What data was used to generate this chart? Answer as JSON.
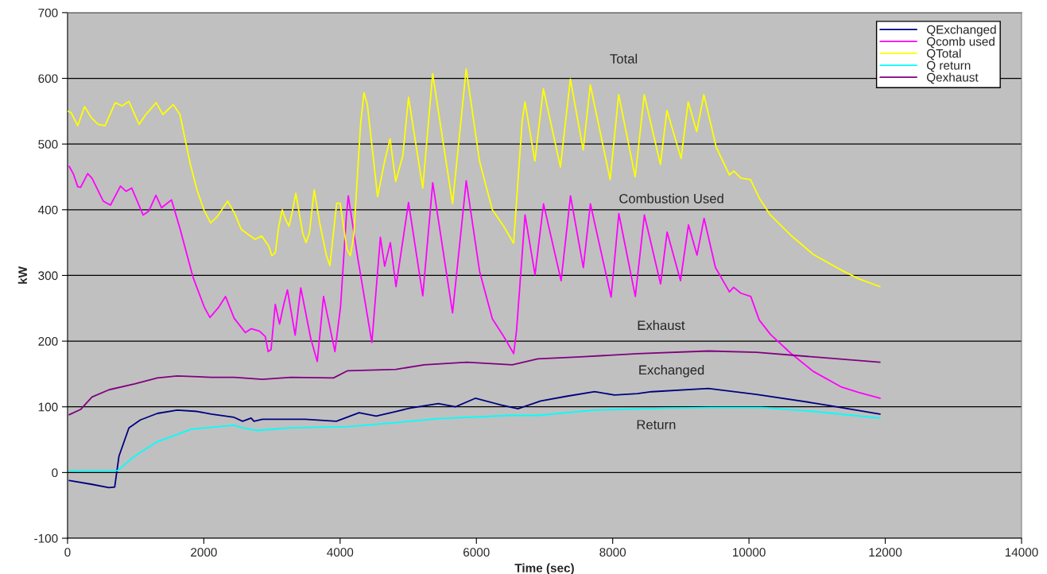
{
  "chart_data": {
    "type": "line",
    "xlabel": "Time (sec)",
    "ylabel": "kW",
    "xlim": [
      0,
      14000
    ],
    "ylim": [
      -100,
      700
    ],
    "xticks": [
      0,
      2000,
      4000,
      6000,
      8000,
      10000,
      12000,
      14000
    ],
    "yticks": [
      -100,
      0,
      100,
      200,
      300,
      400,
      500,
      600,
      700
    ],
    "grid": "y",
    "legend": "top right",
    "line_style": "solid",
    "marker": "none",
    "series": [
      {
        "name": "QExchanged",
        "color": "#000080",
        "x": [
          25,
          359,
          609,
          692,
          755,
          901,
          1068,
          1318,
          1610,
          1902,
          2110,
          2444,
          2569,
          2694,
          2736,
          2861,
          3486,
          3945,
          4279,
          4529,
          4820,
          5025,
          5442,
          5692,
          5984,
          6359,
          6610,
          6943,
          7319,
          7736,
          8027,
          8361,
          8570,
          9404,
          10109,
          10943,
          11923
        ],
        "values": [
          -12,
          -18,
          -23,
          -22,
          25,
          68,
          80,
          90,
          95,
          93,
          89,
          84,
          78,
          83,
          78,
          81,
          81,
          78,
          91,
          86,
          93,
          98,
          105,
          100,
          113,
          103,
          97,
          109,
          116,
          123,
          118,
          120,
          123,
          128,
          119,
          106,
          89
        ]
      },
      {
        "name": "Qcomb used",
        "color": "#ff00ff",
        "x": [
          25,
          88,
          150,
          192,
          296,
          359,
          525,
          630,
          776,
          859,
          942,
          1109,
          1193,
          1297,
          1380,
          1526,
          1651,
          1839,
          2006,
          2089,
          2214,
          2318,
          2444,
          2610,
          2694,
          2819,
          2902,
          2944,
          2986,
          3048,
          3111,
          3173,
          3227,
          3340,
          3423,
          3569,
          3665,
          3757,
          3924,
          4007,
          4091,
          4120,
          4258,
          4466,
          4591,
          4654,
          4737,
          4820,
          5004,
          5213,
          5359,
          5650,
          5851,
          6047,
          6234,
          6401,
          6547,
          6589,
          6714,
          6860,
          6985,
          7243,
          7381,
          7569,
          7673,
          7977,
          8090,
          8332,
          8465,
          8703,
          8799,
          8995,
          9112,
          9237,
          9341,
          9508,
          9713,
          9775,
          9880,
          10026,
          10151,
          10318,
          10609,
          10943,
          11360,
          11610,
          11923
        ],
        "values": [
          466,
          454,
          435,
          434,
          455,
          448,
          413,
          407,
          436,
          428,
          433,
          392,
          398,
          422,
          403,
          415,
          371,
          298,
          252,
          236,
          251,
          268,
          235,
          213,
          219,
          215,
          207,
          184,
          187,
          256,
          226,
          256,
          278,
          209,
          281,
          204,
          169,
          268,
          184,
          253,
          389,
          421,
          327,
          198,
          358,
          314,
          350,
          283,
          411,
          269,
          441,
          243,
          444,
          306,
          234,
          207,
          181,
          216,
          392,
          301,
          409,
          292,
          421,
          312,
          409,
          267,
          394,
          268,
          392,
          287,
          366,
          292,
          377,
          331,
          387,
          312,
          275,
          282,
          273,
          268,
          232,
          210,
          182,
          154,
          130,
          122,
          113
        ]
      },
      {
        "name": "QTotal",
        "color": "#ffff00",
        "x": [
          0,
          50,
          150,
          250,
          350,
          450,
          550,
          700,
          800,
          900,
          1050,
          1150,
          1300,
          1400,
          1550,
          1650,
          1800,
          1900,
          2000,
          2100,
          2200,
          2350,
          2450,
          2550,
          2750,
          2850,
          2950,
          3000,
          3050,
          3100,
          3150,
          3200,
          3250,
          3300,
          3350,
          3450,
          3500,
          3550,
          3620,
          3700,
          3800,
          3850,
          3950,
          4000,
          4100,
          4150,
          4200,
          4300,
          4350,
          4400,
          4550,
          4650,
          4733,
          4816,
          4920,
          5004,
          5213,
          5358,
          5650,
          5850,
          6046,
          6233,
          6400,
          6546,
          6671,
          6713,
          6858,
          6983,
          7233,
          7379,
          7567,
          7671,
          7963,
          8088,
          8330,
          8463,
          8700,
          8796,
          9004,
          9108,
          9233,
          9338,
          9520,
          9713,
          9777,
          9883,
          10022,
          10150,
          10313,
          10605,
          10943,
          11358,
          11608,
          11921
        ],
        "values": [
          550,
          548,
          528,
          557,
          540,
          530,
          528,
          563,
          558,
          565,
          530,
          545,
          563,
          545,
          560,
          545,
          470,
          430,
          400,
          380,
          390,
          413,
          395,
          370,
          355,
          360,
          345,
          330,
          335,
          375,
          400,
          385,
          375,
          398,
          425,
          365,
          350,
          365,
          430,
          380,
          330,
          315,
          410,
          410,
          340,
          330,
          360,
          530,
          578,
          560,
          420,
          472,
          508,
          443,
          482,
          571,
          433,
          607,
          409,
          614,
          474,
          400,
          375,
          349,
          534,
          564,
          474,
          584,
          465,
          599,
          491,
          590,
          446,
          575,
          450,
          575,
          469,
          551,
          478,
          564,
          519,
          575,
          495,
          453,
          459,
          448,
          446,
          418,
          392,
          362,
          332,
          308,
          295,
          283
        ]
      },
      {
        "name": "Q return",
        "color": "#00ffff",
        "x": [
          25,
          734,
          984,
          1318,
          1818,
          2444,
          2569,
          2778,
          3278,
          4111,
          4820,
          5442,
          6485,
          6901,
          7736,
          8778,
          9404,
          10192,
          10943,
          11923
        ],
        "values": [
          3,
          3,
          25,
          47,
          66,
          72,
          68,
          64,
          68,
          70,
          76,
          82,
          87,
          87,
          95,
          98,
          99,
          99,
          93,
          83
        ]
      },
      {
        "name": "Qexhaust",
        "color": "#800080",
        "x": [
          25,
          192,
          359,
          609,
          984,
          1318,
          1610,
          2110,
          2444,
          2861,
          3278,
          3903,
          4111,
          4820,
          5234,
          5859,
          6526,
          6901,
          7527,
          8361,
          9404,
          10109,
          10943,
          11923
        ],
        "values": [
          88,
          96,
          115,
          126,
          135,
          144,
          147,
          145,
          145,
          142,
          145,
          144,
          155,
          157,
          164,
          168,
          164,
          173,
          176,
          181,
          185,
          183,
          176,
          168
        ]
      }
    ],
    "annotations": [
      "Total",
      "Combustion Used",
      "Exhaust",
      "Exchanged",
      "Return"
    ]
  }
}
